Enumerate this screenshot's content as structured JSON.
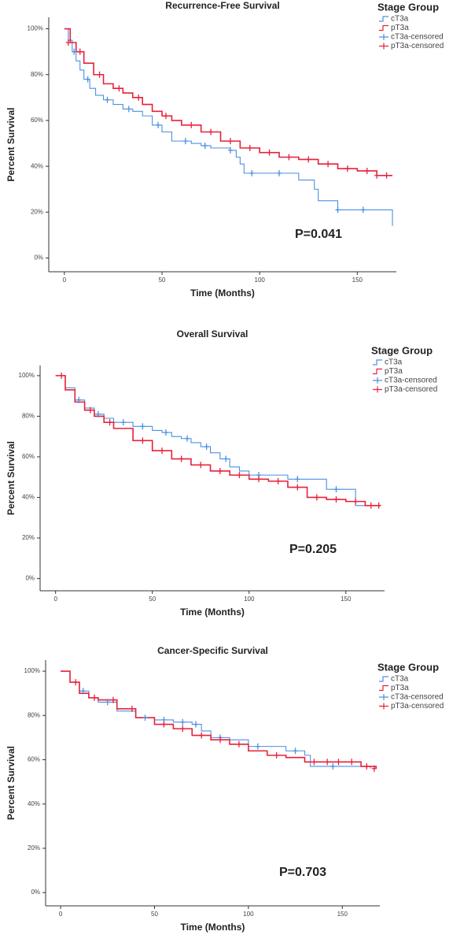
{
  "chart_data": [
    {
      "type": "kaplan-meier",
      "title": "Recurrence-Free Survival",
      "x_label": "Time (Months)",
      "y_label": "Percent Survival",
      "legend_title": "Stage Group",
      "annotation": "P=0.041",
      "xlim": [
        -8,
        170
      ],
      "ylim": [
        -6,
        105
      ],
      "xticks": [
        0,
        50,
        100,
        150
      ],
      "yticks": [
        {
          "value": 0,
          "label": "0%"
        },
        {
          "value": 20,
          "label": "20%"
        },
        {
          "value": 40,
          "label": "40%"
        },
        {
          "value": 60,
          "label": "60%"
        },
        {
          "value": 80,
          "label": "80%"
        },
        {
          "value": 100,
          "label": "100%"
        }
      ],
      "series": [
        {
          "name": "cT3a",
          "color": "#4a90e2",
          "drawstyle": "steps-post",
          "x": [
            0,
            2,
            4,
            6,
            8,
            10,
            13,
            16,
            20,
            25,
            30,
            35,
            40,
            45,
            50,
            55,
            60,
            65,
            70,
            75,
            80,
            85,
            88,
            90,
            92,
            100,
            110,
            120,
            125,
            128,
            130,
            135,
            140,
            150,
            160,
            168
          ],
          "values": [
            100,
            95,
            90,
            86,
            82,
            78,
            74,
            71,
            69,
            67,
            65,
            64,
            62,
            58,
            55,
            51,
            51,
            50,
            49,
            48,
            48,
            47,
            44,
            41,
            37,
            37,
            37,
            34,
            34,
            30,
            25,
            25,
            21,
            21,
            21,
            14
          ]
        },
        {
          "name": "pT3a",
          "color": "#e8203a",
          "drawstyle": "steps-post",
          "x": [
            0,
            3,
            6,
            10,
            15,
            20,
            25,
            30,
            35,
            40,
            45,
            50,
            55,
            60,
            70,
            80,
            90,
            100,
            110,
            120,
            130,
            140,
            150,
            160,
            168
          ],
          "values": [
            100,
            94,
            90,
            85,
            80,
            76,
            74,
            72,
            70,
            67,
            64,
            62,
            60,
            58,
            55,
            51,
            48,
            46,
            44,
            43,
            41,
            39,
            38,
            36,
            36
          ]
        },
        {
          "name": "cT3a-censored",
          "color": "#4a90e2",
          "marker": "+",
          "x": [
            5,
            12,
            22,
            33,
            48,
            62,
            72,
            85,
            96,
            110,
            140,
            153
          ],
          "values": [
            90,
            78,
            69,
            65,
            58,
            51,
            49,
            47,
            37,
            37,
            21,
            21
          ]
        },
        {
          "name": "pT3a-censored",
          "color": "#e8203a",
          "marker": "+",
          "x": [
            2,
            8,
            18,
            28,
            38,
            52,
            65,
            75,
            85,
            95,
            105,
            115,
            125,
            135,
            145,
            155,
            160,
            165
          ],
          "values": [
            94,
            90,
            80,
            74,
            70,
            62,
            58,
            55,
            51,
            48,
            46,
            44,
            43,
            41,
            39,
            38,
            36,
            36
          ]
        }
      ]
    },
    {
      "type": "kaplan-meier",
      "title": "Overall Survival",
      "x_label": "Time (Months)",
      "y_label": "Percent Survival",
      "legend_title": "Stage Group",
      "annotation": "P=0.205",
      "xlim": [
        -8,
        170
      ],
      "ylim": [
        -6,
        105
      ],
      "xticks": [
        0,
        50,
        100,
        150
      ],
      "yticks": [
        {
          "value": 0,
          "label": "0%"
        },
        {
          "value": 20,
          "label": "20%"
        },
        {
          "value": 40,
          "label": "40%"
        },
        {
          "value": 60,
          "label": "60%"
        },
        {
          "value": 80,
          "label": "80%"
        },
        {
          "value": 100,
          "label": "100%"
        }
      ],
      "series": [
        {
          "name": "cT3a",
          "color": "#4a90e2",
          "drawstyle": "steps-post",
          "x": [
            0,
            5,
            10,
            15,
            20,
            25,
            30,
            40,
            50,
            55,
            60,
            65,
            70,
            75,
            80,
            85,
            90,
            95,
            100,
            110,
            120,
            130,
            140,
            150,
            155,
            165
          ],
          "values": [
            100,
            94,
            88,
            84,
            81,
            79,
            77,
            75,
            73,
            72,
            70,
            69,
            67,
            65,
            62,
            59,
            55,
            53,
            51,
            51,
            49,
            49,
            44,
            44,
            36,
            36
          ]
        },
        {
          "name": "pT3a",
          "color": "#e8203a",
          "drawstyle": "steps-post",
          "x": [
            0,
            5,
            10,
            15,
            20,
            25,
            30,
            40,
            50,
            60,
            70,
            80,
            90,
            100,
            110,
            120,
            130,
            140,
            150,
            160,
            168
          ],
          "values": [
            100,
            93,
            87,
            83,
            80,
            77,
            74,
            68,
            63,
            59,
            56,
            53,
            51,
            49,
            48,
            45,
            40,
            39,
            38,
            36,
            36
          ]
        },
        {
          "name": "cT3a-censored",
          "color": "#4a90e2",
          "marker": "+",
          "x": [
            12,
            22,
            35,
            45,
            57,
            68,
            78,
            88,
            105,
            125,
            145
          ],
          "values": [
            88,
            81,
            77,
            75,
            72,
            69,
            65,
            59,
            51,
            49,
            44
          ]
        },
        {
          "name": "pT3a-censored",
          "color": "#e8203a",
          "marker": "+",
          "x": [
            3,
            18,
            28,
            45,
            55,
            65,
            75,
            85,
            95,
            105,
            115,
            125,
            135,
            145,
            155,
            163,
            167
          ],
          "values": [
            100,
            83,
            77,
            68,
            63,
            59,
            56,
            53,
            51,
            49,
            48,
            45,
            40,
            39,
            38,
            36,
            36
          ]
        }
      ]
    },
    {
      "type": "kaplan-meier",
      "title": "Cancer-Specific Survival",
      "x_label": "Time (Months)",
      "y_label": "Percent Survival",
      "legend_title": "Stage Group",
      "annotation": "P=0.703",
      "xlim": [
        -8,
        170
      ],
      "ylim": [
        -6,
        105
      ],
      "xticks": [
        0,
        50,
        100,
        150
      ],
      "yticks": [
        {
          "value": 0,
          "label": "0%"
        },
        {
          "value": 20,
          "label": "20%"
        },
        {
          "value": 40,
          "label": "40%"
        },
        {
          "value": 60,
          "label": "60%"
        },
        {
          "value": 80,
          "label": "80%"
        },
        {
          "value": 100,
          "label": "100%"
        }
      ],
      "series": [
        {
          "name": "cT3a",
          "color": "#4a90e2",
          "drawstyle": "steps-post",
          "x": [
            0,
            5,
            10,
            15,
            20,
            30,
            40,
            50,
            60,
            70,
            75,
            80,
            90,
            100,
            110,
            120,
            130,
            133,
            140,
            150,
            165
          ],
          "values": [
            100,
            95,
            91,
            88,
            86,
            82,
            79,
            78,
            77,
            76,
            73,
            70,
            69,
            66,
            66,
            64,
            62,
            57,
            57,
            57,
            56
          ]
        },
        {
          "name": "pT3a",
          "color": "#e8203a",
          "drawstyle": "steps-post",
          "x": [
            0,
            5,
            10,
            15,
            20,
            30,
            40,
            50,
            60,
            70,
            80,
            90,
            100,
            110,
            120,
            130,
            140,
            150,
            160,
            168
          ],
          "values": [
            100,
            95,
            90,
            88,
            87,
            83,
            79,
            76,
            74,
            71,
            69,
            67,
            64,
            62,
            61,
            59,
            59,
            59,
            57,
            56
          ]
        },
        {
          "name": "cT3a-censored",
          "color": "#4a90e2",
          "marker": "+",
          "x": [
            12,
            25,
            45,
            55,
            65,
            72,
            85,
            105,
            125,
            145
          ],
          "values": [
            91,
            86,
            79,
            78,
            77,
            76,
            70,
            66,
            64,
            57
          ]
        },
        {
          "name": "pT3a-censored",
          "color": "#e8203a",
          "marker": "+",
          "x": [
            8,
            18,
            28,
            38,
            55,
            65,
            75,
            85,
            95,
            115,
            135,
            142,
            148,
            155,
            163,
            167
          ],
          "values": [
            95,
            88,
            87,
            83,
            76,
            74,
            71,
            69,
            67,
            62,
            59,
            59,
            59,
            59,
            57,
            56
          ]
        }
      ]
    }
  ]
}
